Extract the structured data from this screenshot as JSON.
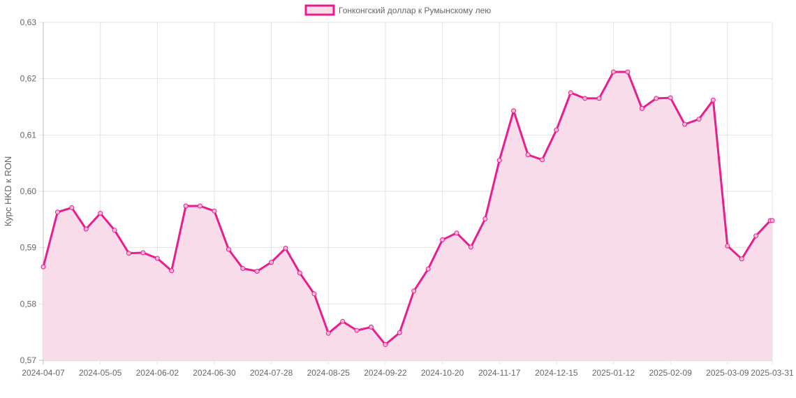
{
  "chart_data": {
    "type": "line",
    "ylabel": "Курс HKD к RON",
    "ylim": [
      0.57,
      0.63
    ],
    "y_ticks": [
      "0,57",
      "0,58",
      "0,59",
      "0,60",
      "0,61",
      "0,62",
      "0,63"
    ],
    "x_tick_labels": [
      "2024-04-07",
      "2024-05-05",
      "2024-06-02",
      "2024-06-30",
      "2024-07-28",
      "2024-08-25",
      "2024-09-22",
      "2024-10-20",
      "2024-11-17",
      "2024-12-15",
      "2025-01-12",
      "2025-02-09",
      "2025-03-09",
      "2025-03-31"
    ],
    "grid": true,
    "legend": "top-center",
    "series": [
      {
        "name": "Гонконгский доллар к Румынскому лею",
        "color": "#e91e8c",
        "fill": "#f8dcea",
        "x": [
          "2024-04-07",
          "2024-04-14",
          "2024-04-21",
          "2024-04-28",
          "2024-05-05",
          "2024-05-12",
          "2024-05-19",
          "2024-05-26",
          "2024-06-02",
          "2024-06-09",
          "2024-06-16",
          "2024-06-23",
          "2024-06-30",
          "2024-07-07",
          "2024-07-14",
          "2024-07-21",
          "2024-07-28",
          "2024-08-04",
          "2024-08-11",
          "2024-08-18",
          "2024-08-25",
          "2024-09-01",
          "2024-09-08",
          "2024-09-15",
          "2024-09-22",
          "2024-09-29",
          "2024-10-06",
          "2024-10-13",
          "2024-10-20",
          "2024-10-27",
          "2024-11-03",
          "2024-11-10",
          "2024-11-17",
          "2024-11-24",
          "2024-12-01",
          "2024-12-08",
          "2024-12-15",
          "2024-12-22",
          "2024-12-29",
          "2025-01-05",
          "2025-01-12",
          "2025-01-19",
          "2025-01-26",
          "2025-02-02",
          "2025-02-09",
          "2025-02-16",
          "2025-02-23",
          "2025-03-02",
          "2025-03-09",
          "2025-03-16",
          "2025-03-23",
          "2025-03-30",
          "2025-03-31"
        ],
        "y": [
          0.5866,
          0.5963,
          0.5971,
          0.5933,
          0.5961,
          0.5931,
          0.589,
          0.5891,
          0.5881,
          0.5859,
          0.5974,
          0.5974,
          0.5965,
          0.5897,
          0.5863,
          0.5858,
          0.5874,
          0.5899,
          0.5855,
          0.5818,
          0.5748,
          0.5769,
          0.5753,
          0.5759,
          0.5728,
          0.5749,
          0.5823,
          0.5862,
          0.5914,
          0.5926,
          0.5901,
          0.5951,
          0.6055,
          0.6143,
          0.6065,
          0.6056,
          0.6109,
          0.6175,
          0.6165,
          0.6165,
          0.6212,
          0.6212,
          0.6147,
          0.6165,
          0.6166,
          0.6119,
          0.6128,
          0.6162,
          0.5903,
          0.588,
          0.5921,
          0.5948,
          0.5948
        ]
      }
    ]
  }
}
